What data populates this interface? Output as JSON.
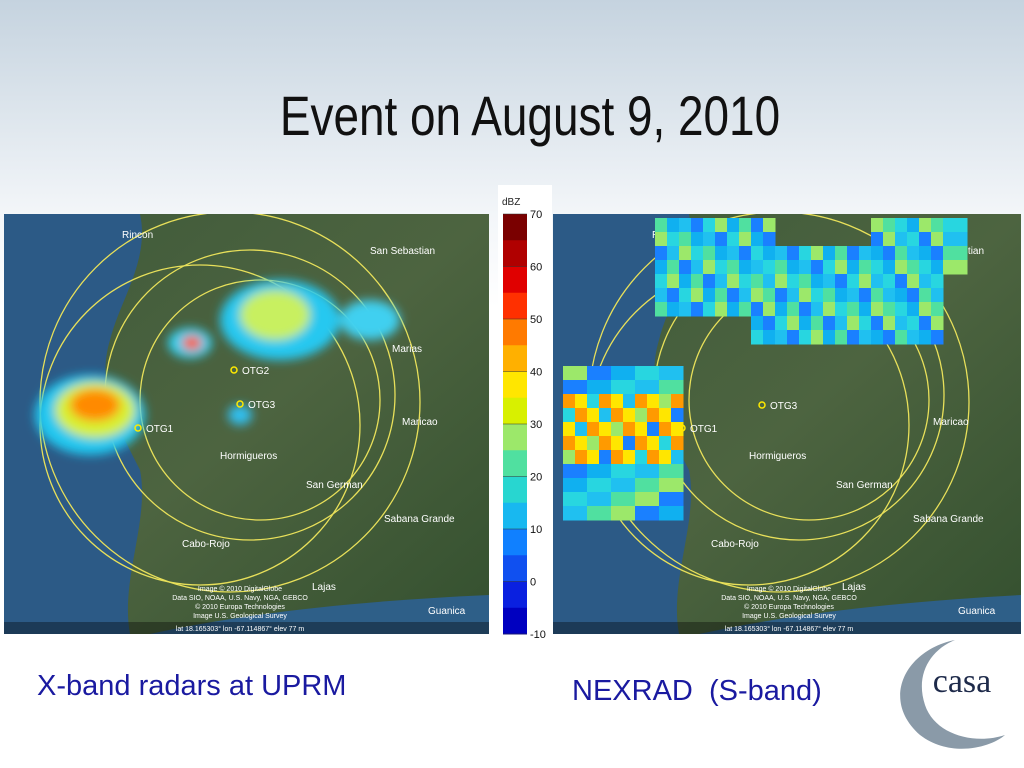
{
  "header": {
    "title": "Event on August 9, 2010"
  },
  "colorbar": {
    "unit": "dBZ",
    "ticks": [
      70,
      60,
      50,
      40,
      30,
      20,
      10,
      0,
      -10
    ]
  },
  "maps": [
    {
      "caption": "X-band radars at UPRM",
      "labels": [
        "Rincon",
        "San Sebastian",
        "Marias",
        "OTG2",
        "OTG3",
        "OTG1",
        "Maricao",
        "Hormigueros",
        "San German",
        "Sabana Grande",
        "Cabo-Rojo",
        "Lajas",
        "Guanica"
      ],
      "attribution": [
        "Image © 2010 DigitalGlobe",
        "Data SIO, NOAA, U.S. Navy, NGA, GEBCO",
        "© 2010 Europa Technologies",
        "Image U.S. Geological Survey"
      ],
      "coords": "lat  18.165303°   lon  -67.114867°   elev   77 m"
    },
    {
      "caption": "NEXRAD  (S-band)",
      "labels": [
        "Rincon",
        "San Sebastian",
        "OTG3",
        "OTG1",
        "Maricao",
        "Hormigueros",
        "San German",
        "Sabana Grande",
        "Cabo-Rojo",
        "Lajas",
        "Guanica"
      ],
      "attribution": [
        "Image © 2010 DigitalGlobe",
        "Data SIO, NOAA, U.S. Navy, NGA, GEBCO",
        "© 2010 Europa Technologies",
        "Image U.S. Geological Survey"
      ],
      "coords": "lat  18.165303°   lon  -67.114867°   elev   77 m"
    }
  ],
  "logo": {
    "text": "casa"
  }
}
